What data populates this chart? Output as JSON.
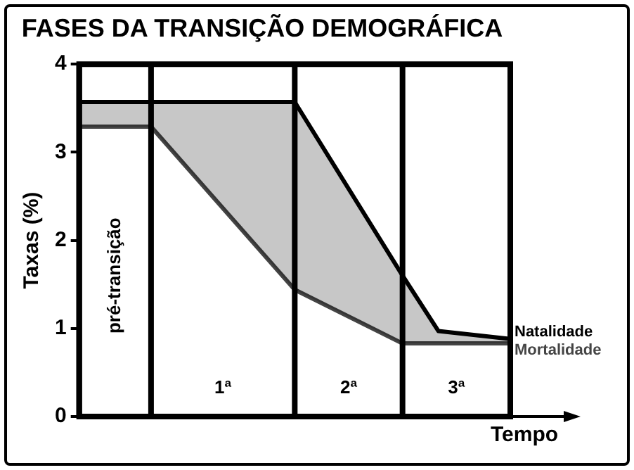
{
  "chart_data": {
    "type": "line",
    "title": "FASES DA TRANSIÇÃO DEMOGRÁFICA",
    "xlabel": "Tempo",
    "ylabel": "Taxas (%)",
    "categories": [
      null,
      null,
      null,
      null,
      null,
      null,
      null,
      null,
      null,
      null,
      null,
      null,
      null
    ],
    "series": [
      {
        "name": "Natalidade",
        "color": "#000000",
        "values": [
          3.57,
          null,
          3.57,
          null,
          null,
          null,
          3.57,
          null,
          null,
          1.6,
          0.97,
          null,
          0.88
        ],
        "upper": [
          3.57,
          null,
          3.57,
          null,
          null,
          null,
          3.57,
          null,
          null,
          1.6,
          0.97,
          null,
          0.88
        ],
        "lower": [
          3.29,
          null,
          3.29,
          null,
          null,
          null,
          1.44,
          null,
          null,
          0.83,
          0.83,
          null,
          0.83
        ]
      },
      {
        "name": "Mortalidade",
        "color": "#444444",
        "values": [
          3.29,
          null,
          3.29,
          null,
          null,
          null,
          1.44,
          null,
          null,
          0.83,
          null,
          null,
          0.83
        ]
      }
    ],
    "ylim": [
      0,
      4
    ],
    "yticks": [
      0,
      1,
      2,
      3,
      4
    ],
    "grid": "x",
    "legend": false,
    "annotations": [
      "pré-transição",
      "1ª",
      "2ª",
      "3ª"
    ]
  }
}
